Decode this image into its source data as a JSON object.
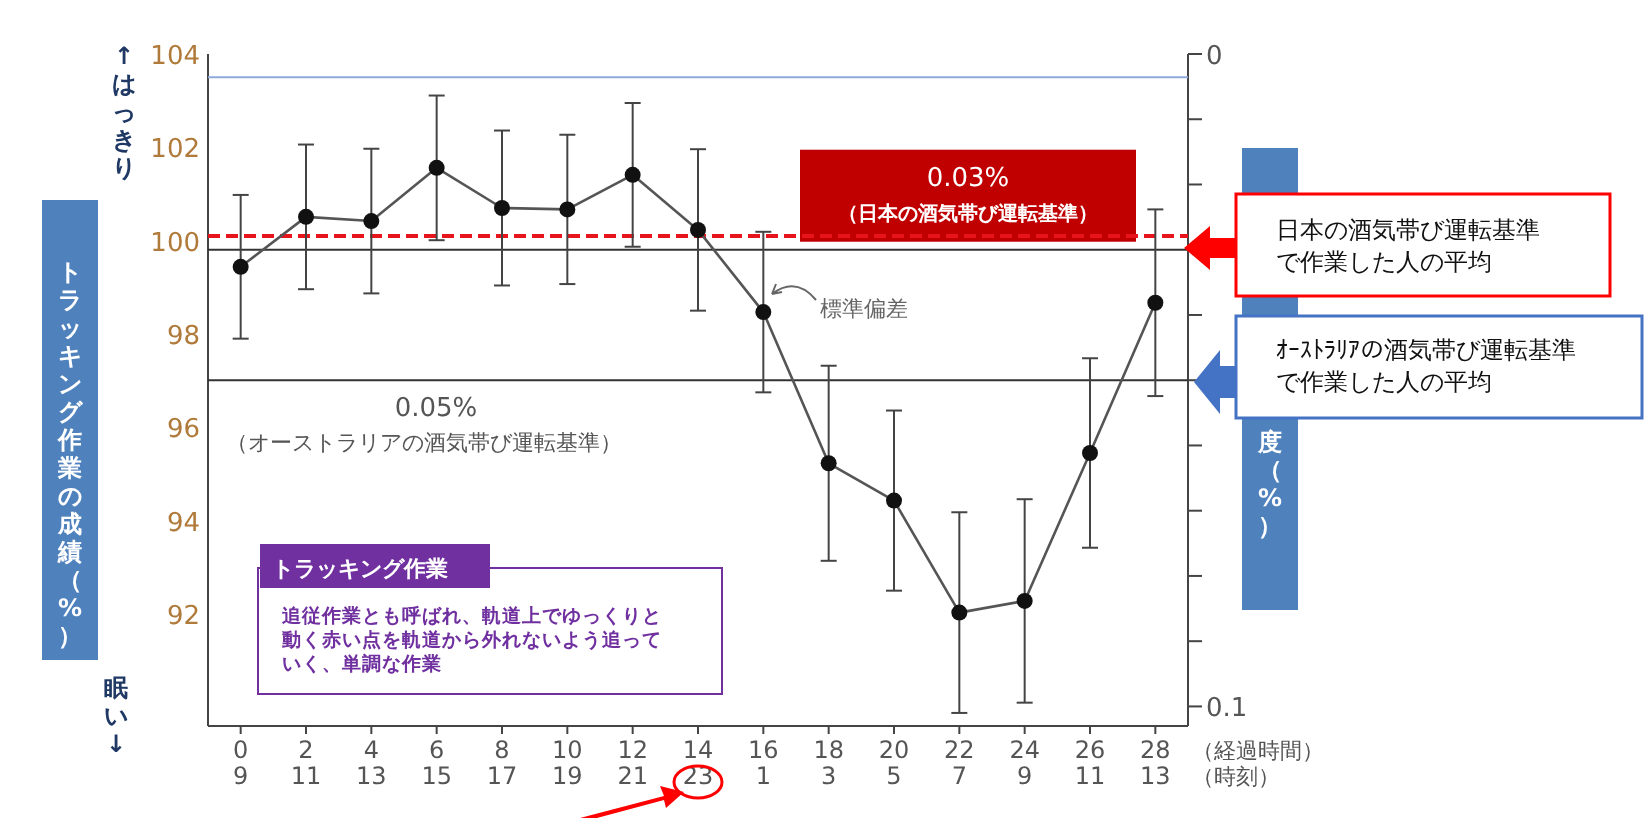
{
  "chart_data": {
    "type": "line",
    "categories": [
      "0\n9",
      "2\n11",
      "4\n13",
      "6\n15",
      "8\n17",
      "10\n19",
      "12\n21",
      "14\n23",
      "16\n1",
      "18\n3",
      "20\n5",
      "22\n7",
      "24\n9",
      "26\n11",
      "28\n13"
    ],
    "series": [
      {
        "color": "#555555",
        "values": [
          99.44,
          100.51,
          100.42,
          101.56,
          100.7,
          100.67,
          101.41,
          100.23,
          98.47,
          95.23,
          94.43,
          92.03,
          92.28,
          95.45,
          98.67
        ],
        "errors": [
          1.54,
          1.55,
          1.55,
          1.55,
          1.66,
          1.6,
          1.54,
          1.73,
          1.72,
          2.09,
          1.93,
          2.15,
          2.18,
          2.03,
          2.0
        ]
      }
    ],
    "marker": "circle",
    "ylim": [
      89.6,
      104
    ],
    "yticks": [
      92,
      94,
      96,
      98,
      100,
      102,
      104
    ],
    "y2lim": [
      0.103,
      0
    ],
    "y2ticks": [
      0,
      {
        "value": 0.01,
        "label": null
      },
      {
        "value": 0.02,
        "label": null
      },
      {
        "value": 0.03,
        "label": null
      },
      {
        "value": 0.04,
        "label": null
      },
      {
        "value": 0.05,
        "label": null
      },
      {
        "value": 0.06,
        "label": null
      },
      {
        "value": 0.07,
        "label": null
      },
      {
        "value": 0.08,
        "label": null
      },
      {
        "value": 0.09,
        "label": null
      },
      0.1
    ],
    "ylabel": "トラッキング作業の成績（%）",
    "y2label": "度（%）",
    "xlabel": "（経過時間）（時刻）",
    "ref_lines": [
      {
        "axis": "y",
        "value": 103.5,
        "color": "#8eaadb",
        "line_style": "solid"
      },
      {
        "axis": "y2",
        "value": 0.03,
        "color": "#333333",
        "line_style": "solid",
        "label": "0.03%\n（日本の酒気帯び運転基準）"
      },
      {
        "axis": "y",
        "value": 100.1,
        "color": "#e8141b",
        "line_style": "dashed"
      },
      {
        "axis": "y2",
        "value": 0.05,
        "color": "#333333",
        "line_style": "solid",
        "label": "0.05%\n（オーストラリアの酒気帯び運転基準）"
      }
    ],
    "annotations": [
      "↑はっきり",
      "眠い↓",
      "標準偏差",
      "トラッキング作業",
      "追従作業とも呼ばれ、軌道上でゆっくりと動く赤い点を軌道から外れないよう追っていく、単調な作業",
      "日本の酒気帯び運転基準で作業した人の平均",
      "ｵｰｽﾄﾗﾘｱの酒気帯び運転基準で作業した人の平均"
    ]
  }
}
